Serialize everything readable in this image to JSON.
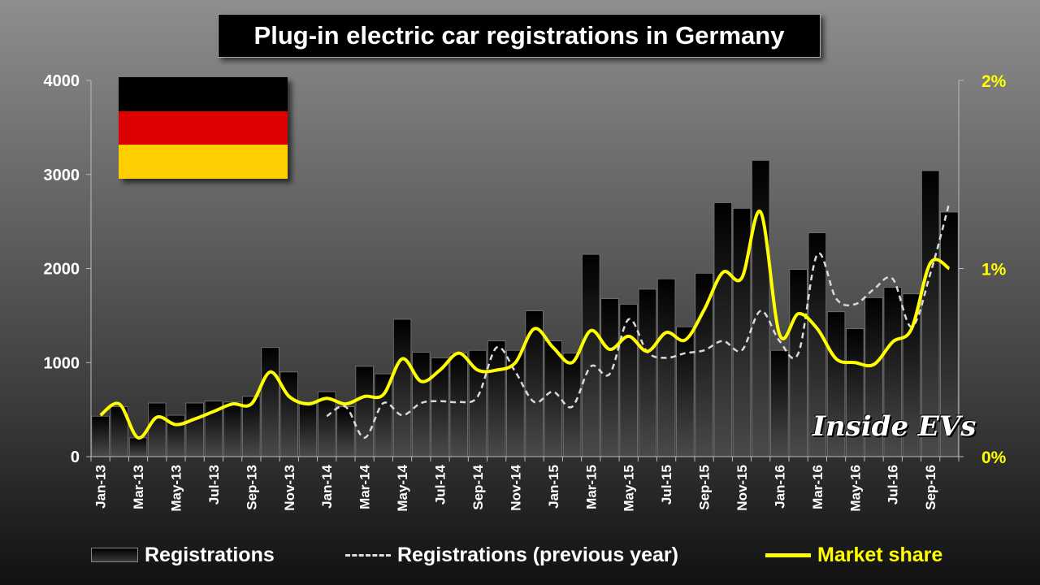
{
  "title": "Plug-in electric car registrations in Germany",
  "watermark": "Inside EVs",
  "flag_colors": [
    "#000000",
    "#dd0000",
    "#ffce00"
  ],
  "colors": {
    "bar_top": "#000000",
    "bar_bottom": "#4a4a4a",
    "prev_line": "#d9d9d9",
    "share_line": "#ffff00",
    "axis_text": "#ffffff",
    "right_axis_text": "#ffff00"
  },
  "legend": {
    "registrations": "Registrations",
    "previous_year": "Registrations (previous year)",
    "market_share": "Market share"
  },
  "chart_data": {
    "type": "bar",
    "title": "Plug-in electric car registrations in Germany",
    "categories": [
      "Jan-13",
      "Feb-13",
      "Mar-13",
      "Apr-13",
      "May-13",
      "Jun-13",
      "Jul-13",
      "Aug-13",
      "Sep-13",
      "Oct-13",
      "Nov-13",
      "Dec-13",
      "Jan-14",
      "Feb-14",
      "Mar-14",
      "Apr-14",
      "May-14",
      "Jun-14",
      "Jul-14",
      "Aug-14",
      "Sep-14",
      "Oct-14",
      "Nov-14",
      "Dec-14",
      "Jan-15",
      "Feb-15",
      "Mar-15",
      "Apr-15",
      "May-15",
      "Jun-15",
      "Jul-15",
      "Aug-15",
      "Sep-15",
      "Oct-15",
      "Nov-15",
      "Dec-15",
      "Jan-16",
      "Feb-16",
      "Mar-16",
      "Apr-16",
      "May-16",
      "Jun-16",
      "Jul-16",
      "Aug-16",
      "Sep-16",
      "Oct-16"
    ],
    "x_tick_labels": [
      "Jan-13",
      "Mar-13",
      "May-13",
      "Jul-13",
      "Sep-13",
      "Nov-13",
      "Jan-14",
      "Mar-14",
      "May-14",
      "Jul-14",
      "Sep-14",
      "Nov-14",
      "Jan-15",
      "Mar-15",
      "May-15",
      "Jul-15",
      "Sep-15",
      "Nov-15",
      "Jan-16",
      "Mar-16",
      "May-16",
      "Jul-16",
      "Sep-16"
    ],
    "y_ticks": [
      "0",
      "1000",
      "2000",
      "3000",
      "4000"
    ],
    "y2_ticks": [
      "0%",
      "1%",
      "2%"
    ],
    "ylim": [
      0,
      4000
    ],
    "y2lim": [
      0,
      2
    ],
    "series": [
      {
        "name": "Registrations",
        "type": "bar",
        "values": [
          430,
          530,
          200,
          570,
          440,
          570,
          590,
          580,
          640,
          1160,
          900,
          580,
          690,
          530,
          960,
          880,
          1460,
          1110,
          1050,
          1100,
          1130,
          1230,
          1130,
          1550,
          1230,
          1100,
          2150,
          1680,
          1620,
          1780,
          1890,
          1380,
          1950,
          2700,
          2640,
          3150,
          1130,
          1990,
          2380,
          1540,
          1360,
          1690,
          1800,
          1730,
          3040,
          2600
        ]
      },
      {
        "name": "Registrations (previous year)",
        "type": "line",
        "values": [
          null,
          null,
          null,
          null,
          null,
          null,
          null,
          null,
          null,
          null,
          null,
          null,
          430,
          530,
          200,
          570,
          440,
          570,
          590,
          580,
          640,
          1160,
          900,
          580,
          690,
          530,
          960,
          880,
          1460,
          1110,
          1050,
          1100,
          1130,
          1230,
          1130,
          1550,
          1230,
          1100,
          2150,
          1680,
          1620,
          1780,
          1890,
          1380,
          1950,
          2700
        ]
      },
      {
        "name": "Market share",
        "type": "line",
        "axis": "right",
        "values": [
          0.22,
          0.28,
          0.1,
          0.21,
          0.17,
          0.2,
          0.24,
          0.28,
          0.28,
          0.45,
          0.32,
          0.28,
          0.31,
          0.28,
          0.32,
          0.33,
          0.52,
          0.4,
          0.46,
          0.55,
          0.46,
          0.46,
          0.5,
          0.68,
          0.58,
          0.5,
          0.67,
          0.57,
          0.64,
          0.56,
          0.66,
          0.62,
          0.78,
          0.98,
          0.95,
          1.3,
          0.65,
          0.76,
          0.68,
          0.52,
          0.5,
          0.49,
          0.61,
          0.68,
          1.03,
          1.0
        ]
      }
    ],
    "legend_position": "bottom",
    "grid": false
  }
}
